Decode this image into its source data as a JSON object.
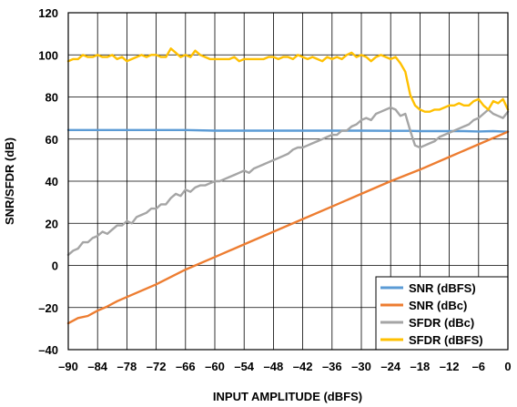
{
  "chart_data": {
    "type": "line",
    "xlabel": "INPUT AMPLITUDE (dBFS)",
    "ylabel": "SNR/SFDR (dB)",
    "xlim": [
      -90,
      0
    ],
    "ylim": [
      -40,
      120
    ],
    "grid": true,
    "legend_position": "bottom-right",
    "x_ticks": [
      "–90",
      "–84",
      "–78",
      "–72",
      "–66",
      "–60",
      "–54",
      "–48",
      "–42",
      "–36",
      "–30",
      "–24",
      "–18",
      "–12",
      "–6",
      "0"
    ],
    "y_ticks": [
      "–40",
      "–20",
      "0",
      "20",
      "40",
      "60",
      "80",
      "100",
      "120"
    ],
    "series": [
      {
        "name": "SNR (dBFS)",
        "color": "#5B9BD5",
        "x": [
          -90,
          -84,
          -78,
          -72,
          -66,
          -60,
          -54,
          -48,
          -42,
          -36,
          -30,
          -24,
          -20,
          -18,
          -12,
          -9,
          -6,
          -3,
          0
        ],
        "y": [
          64.3,
          64.3,
          64.3,
          64.3,
          64.3,
          64.0,
          64.0,
          64.0,
          64.0,
          64.0,
          64.0,
          63.9,
          63.9,
          63.8,
          63.8,
          63.8,
          63.6,
          63.8,
          63.5
        ]
      },
      {
        "name": "SNR (dBc)",
        "color": "#ED7D31",
        "x": [
          -90,
          -88,
          -86,
          -84,
          -82,
          -80,
          -78,
          -72,
          -66,
          -60,
          -54,
          -48,
          -42,
          -36,
          -30,
          -24,
          -18,
          -12,
          -6,
          0
        ],
        "y": [
          -27.5,
          -25.0,
          -24.0,
          -21.5,
          -19.5,
          -17.0,
          -15.0,
          -9.0,
          -2.0,
          4.0,
          10.0,
          16.0,
          22.0,
          28.0,
          34.0,
          40.0,
          45.5,
          51.5,
          57.5,
          63.5
        ]
      },
      {
        "name": "SFDR (dBc)",
        "color": "#A5A5A5",
        "x": [
          -90,
          -89,
          -88,
          -87,
          -86,
          -85,
          -84,
          -83,
          -82,
          -81,
          -80,
          -79,
          -78,
          -77,
          -76,
          -75,
          -74,
          -73,
          -72,
          -71,
          -70,
          -69,
          -68,
          -67,
          -66,
          -65,
          -64,
          -63,
          -62,
          -61,
          -60,
          -59,
          -58,
          -57,
          -56,
          -55,
          -54,
          -53,
          -52,
          -51,
          -50,
          -49,
          -48,
          -47,
          -46,
          -45,
          -44,
          -43,
          -42,
          -41,
          -40,
          -39,
          -38,
          -37,
          -36,
          -35,
          -34,
          -33,
          -32,
          -31,
          -30,
          -29,
          -28,
          -27,
          -26,
          -25,
          -24,
          -23,
          -22,
          -21,
          -20,
          -19,
          -18,
          -17,
          -16,
          -15,
          -14,
          -13,
          -12,
          -11,
          -10,
          -9,
          -8,
          -7,
          -6,
          -5,
          -4,
          -3,
          -2,
          -1,
          0
        ],
        "y": [
          5,
          7,
          8,
          11,
          11,
          13,
          14,
          16,
          15,
          17,
          19,
          19,
          21,
          20,
          23,
          24,
          25,
          27,
          27,
          29,
          29,
          32,
          34,
          33,
          36,
          35,
          37,
          38,
          38,
          39,
          40,
          40,
          41,
          42,
          43,
          44,
          45,
          44,
          46,
          47,
          48,
          49,
          50,
          51,
          52,
          53,
          55,
          56,
          56,
          57,
          58,
          59,
          60,
          61,
          62,
          62,
          64,
          64,
          66,
          67,
          69,
          70,
          69,
          72,
          73,
          74,
          75,
          74,
          71,
          72,
          64,
          57,
          56,
          57,
          58,
          59,
          61,
          62,
          63,
          64,
          65,
          66,
          67,
          69,
          70,
          72,
          74,
          72,
          71,
          70,
          73
        ]
      },
      {
        "name": "SFDR (dBFS)",
        "color": "#FFC000",
        "x": [
          -90,
          -89,
          -88,
          -87,
          -86,
          -85,
          -84,
          -83,
          -82,
          -81,
          -80,
          -79,
          -78,
          -77,
          -76,
          -75,
          -74,
          -73,
          -72,
          -71,
          -70,
          -69,
          -68,
          -67,
          -66,
          -65,
          -64,
          -63,
          -62,
          -61,
          -60,
          -59,
          -58,
          -57,
          -56,
          -55,
          -54,
          -53,
          -52,
          -51,
          -50,
          -49,
          -48,
          -47,
          -46,
          -45,
          -44,
          -43,
          -42,
          -41,
          -40,
          -39,
          -38,
          -37,
          -36,
          -35,
          -34,
          -33,
          -32,
          -31,
          -30,
          -29,
          -28,
          -27,
          -26,
          -25,
          -24,
          -23,
          -22,
          -21,
          -20,
          -19,
          -18,
          -17,
          -16,
          -15,
          -14,
          -13,
          -12,
          -11,
          -10,
          -9,
          -8,
          -7,
          -6,
          -5,
          -4,
          -3,
          -2,
          -1,
          0
        ],
        "y": [
          97,
          98,
          98,
          100,
          99,
          99,
          100,
          99,
          99,
          100,
          98,
          99,
          97,
          98,
          99,
          100,
          99,
          100,
          100,
          99,
          99,
          103,
          101,
          99,
          100,
          99,
          102,
          100,
          99,
          98,
          98,
          98,
          98,
          98,
          99,
          97,
          98,
          98,
          98,
          98,
          98,
          99,
          99,
          98,
          99,
          99,
          98,
          100,
          99,
          98,
          99,
          98,
          97,
          99,
          98,
          99,
          98,
          100,
          101,
          99,
          100,
          99,
          97,
          99,
          100,
          99,
          98,
          99,
          96,
          92,
          81,
          76,
          74,
          73,
          73,
          74,
          74,
          75,
          76,
          76,
          77,
          76,
          76,
          78,
          79,
          76,
          74,
          78,
          77,
          79,
          74
        ]
      }
    ]
  }
}
